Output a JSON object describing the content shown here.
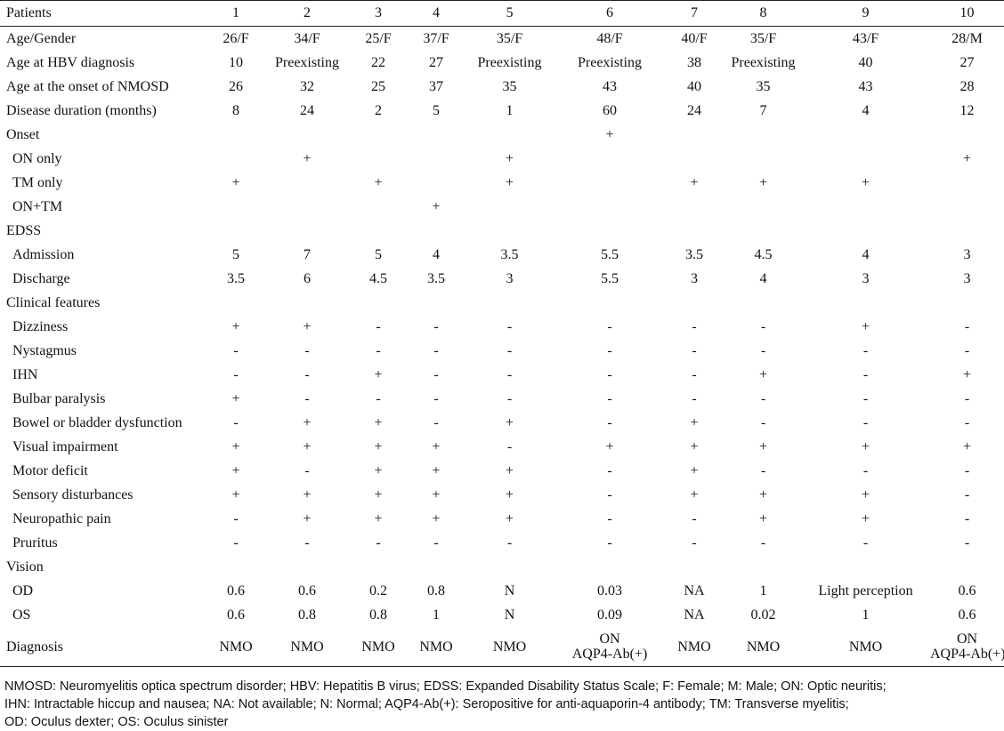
{
  "table": {
    "header_label": "Patients",
    "patients": [
      "1",
      "2",
      "3",
      "4",
      "5",
      "6",
      "7",
      "8",
      "9",
      "10"
    ],
    "rows": [
      {
        "label": "Age/Gender",
        "indent": false,
        "values": [
          "26/F",
          "34/F",
          "25/F",
          "37/F",
          "35/F",
          "48/F",
          "40/F",
          "35/F",
          "43/F",
          "28/M"
        ]
      },
      {
        "label": "Age at HBV diagnosis",
        "indent": false,
        "values": [
          "10",
          "Preexisting",
          "22",
          "27",
          "Preexisting",
          "Preexisting",
          "38",
          "Preexisting",
          "40",
          "27"
        ]
      },
      {
        "label": "Age at the onset of NMOSD",
        "indent": false,
        "values": [
          "26",
          "32",
          "25",
          "37",
          "35",
          "43",
          "40",
          "35",
          "43",
          "28"
        ]
      },
      {
        "label": "Disease duration (months)",
        "indent": false,
        "values": [
          "8",
          "24",
          "2",
          "5",
          "1",
          "60",
          "24",
          "7",
          "4",
          "12"
        ]
      },
      {
        "label": "Onset",
        "indent": false,
        "values": [
          "",
          "",
          "",
          "",
          "",
          "+",
          "",
          "",
          "",
          ""
        ]
      },
      {
        "label": "ON only",
        "indent": true,
        "values": [
          "",
          "+",
          "",
          "",
          "+",
          "",
          "",
          "",
          "",
          "+"
        ]
      },
      {
        "label": "TM only",
        "indent": true,
        "values": [
          "+",
          "",
          "+",
          "",
          "+",
          "",
          "+",
          "+",
          "+",
          ""
        ]
      },
      {
        "label": "ON+TM",
        "indent": true,
        "values": [
          "",
          "",
          "",
          "+",
          "",
          "",
          "",
          "",
          "",
          ""
        ]
      },
      {
        "label": "EDSS",
        "indent": false,
        "values": [
          "",
          "",
          "",
          "",
          "",
          "",
          "",
          "",
          "",
          ""
        ]
      },
      {
        "label": "Admission",
        "indent": true,
        "values": [
          "5",
          "7",
          "5",
          "4",
          "3.5",
          "5.5",
          "3.5",
          "4.5",
          "4",
          "3"
        ]
      },
      {
        "label": "Discharge",
        "indent": true,
        "values": [
          "3.5",
          "6",
          "4.5",
          "3.5",
          "3",
          "5.5",
          "3",
          "4",
          "3",
          "3"
        ]
      },
      {
        "label": "Clinical features",
        "indent": false,
        "values": [
          "",
          "",
          "",
          "",
          "",
          "",
          "",
          "",
          "",
          ""
        ]
      },
      {
        "label": "Dizziness",
        "indent": true,
        "values": [
          "+",
          "+",
          "-",
          "-",
          "-",
          "-",
          "-",
          "-",
          "+",
          "-"
        ]
      },
      {
        "label": "Nystagmus",
        "indent": true,
        "values": [
          "-",
          "-",
          "-",
          "-",
          "-",
          "-",
          "-",
          "-",
          "-",
          "-"
        ]
      },
      {
        "label": "IHN",
        "indent": true,
        "values": [
          "-",
          "-",
          "+",
          "-",
          "-",
          "-",
          "-",
          "+",
          "-",
          "+"
        ]
      },
      {
        "label": "Bulbar paralysis",
        "indent": true,
        "values": [
          "+",
          "-",
          "-",
          "-",
          "-",
          "-",
          "-",
          "-",
          "-",
          "-"
        ]
      },
      {
        "label": "Bowel or bladder dysfunction",
        "indent": true,
        "values": [
          "-",
          "+",
          "+",
          "-",
          "+",
          "-",
          "+",
          "-",
          "-",
          "-"
        ]
      },
      {
        "label": "Visual impairment",
        "indent": true,
        "values": [
          "+",
          "+",
          "+",
          "+",
          "-",
          "+",
          "+",
          "+",
          "+",
          "+"
        ]
      },
      {
        "label": "Motor deficit",
        "indent": true,
        "values": [
          "+",
          "-",
          "+",
          "+",
          "+",
          "-",
          "+",
          "-",
          "-",
          "-"
        ]
      },
      {
        "label": "Sensory disturbances",
        "indent": true,
        "values": [
          "+",
          "+",
          "+",
          "+",
          "+",
          "-",
          "+",
          "+",
          "+",
          "-"
        ]
      },
      {
        "label": "Neuropathic pain",
        "indent": true,
        "values": [
          "-",
          "+",
          "+",
          "+",
          "+",
          "-",
          "-",
          "+",
          "+",
          "-"
        ]
      },
      {
        "label": "Pruritus",
        "indent": true,
        "values": [
          "-",
          "-",
          "-",
          "-",
          "-",
          "-",
          "-",
          "-",
          "-",
          "-"
        ]
      },
      {
        "label": "Vision",
        "indent": false,
        "values": [
          "",
          "",
          "",
          "",
          "",
          "",
          "",
          "",
          "",
          ""
        ]
      },
      {
        "label": "OD",
        "indent": true,
        "values": [
          "0.6",
          "0.6",
          "0.2",
          "0.8",
          "N",
          "0.03",
          "NA",
          "1",
          "Light perception",
          "0.6"
        ]
      },
      {
        "label": "OS",
        "indent": true,
        "values": [
          "0.6",
          "0.8",
          "0.8",
          "1",
          "N",
          "0.09",
          "NA",
          "0.02",
          "1",
          "0.6"
        ]
      }
    ],
    "diagnosis": {
      "label": "Diagnosis",
      "values": [
        {
          "l1": "NMO",
          "l2": ""
        },
        {
          "l1": "NMO",
          "l2": ""
        },
        {
          "l1": "NMO",
          "l2": ""
        },
        {
          "l1": "NMO",
          "l2": ""
        },
        {
          "l1": "NMO",
          "l2": ""
        },
        {
          "l1": "ON",
          "l2": "AQP4-Ab(+)"
        },
        {
          "l1": "NMO",
          "l2": ""
        },
        {
          "l1": "NMO",
          "l2": ""
        },
        {
          "l1": "NMO",
          "l2": ""
        },
        {
          "l1": "ON",
          "l2": "AQP4-Ab(+)"
        }
      ]
    }
  },
  "footnote": {
    "lines": [
      "NMOSD: Neuromyelitis optica spectrum disorder; HBV: Hepatitis B virus; EDSS: Expanded Disability Status Scale; F: Female; M: Male; ON: Optic neuritis;",
      "IHN: Intractable hiccup and nausea; NA: Not available; N: Normal; AQP4-Ab(+): Seropositive for anti-aquaporin-4 antibody; TM: Transverse myelitis;",
      "OD: Oculus dexter; OS: Oculus sinister"
    ]
  }
}
